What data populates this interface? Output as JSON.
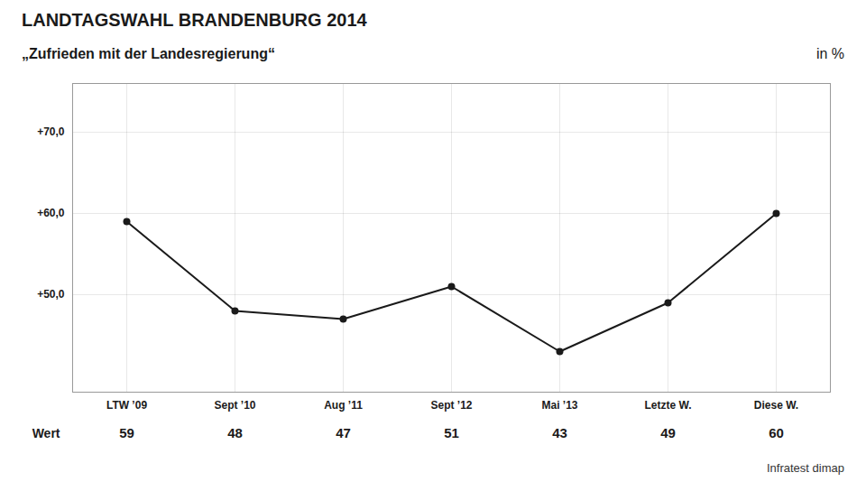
{
  "chart_data": {
    "type": "line",
    "title": "LANDTAGSWAHL BRANDENBURG 2014",
    "subtitle": "„Zufrieden mit der Landesregierung“",
    "ylabel": "in %",
    "source": "Infratest dimap",
    "row_label": "Wert",
    "categories": [
      "LTW ’09",
      "Sept ’10",
      "Aug ’11",
      "Sept ’12",
      "Mai ’13",
      "Letzte W.",
      "Diese W."
    ],
    "values": [
      59,
      48,
      47,
      51,
      43,
      49,
      60
    ],
    "color": "#1a1a1a",
    "ylim": [
      38,
      76
    ],
    "yticks": [
      {
        "value": 50,
        "label": "+50,0"
      },
      {
        "value": 60,
        "label": "+60,0"
      },
      {
        "value": 70,
        "label": "+70,0"
      }
    ],
    "grid": true,
    "data_labels": true
  }
}
